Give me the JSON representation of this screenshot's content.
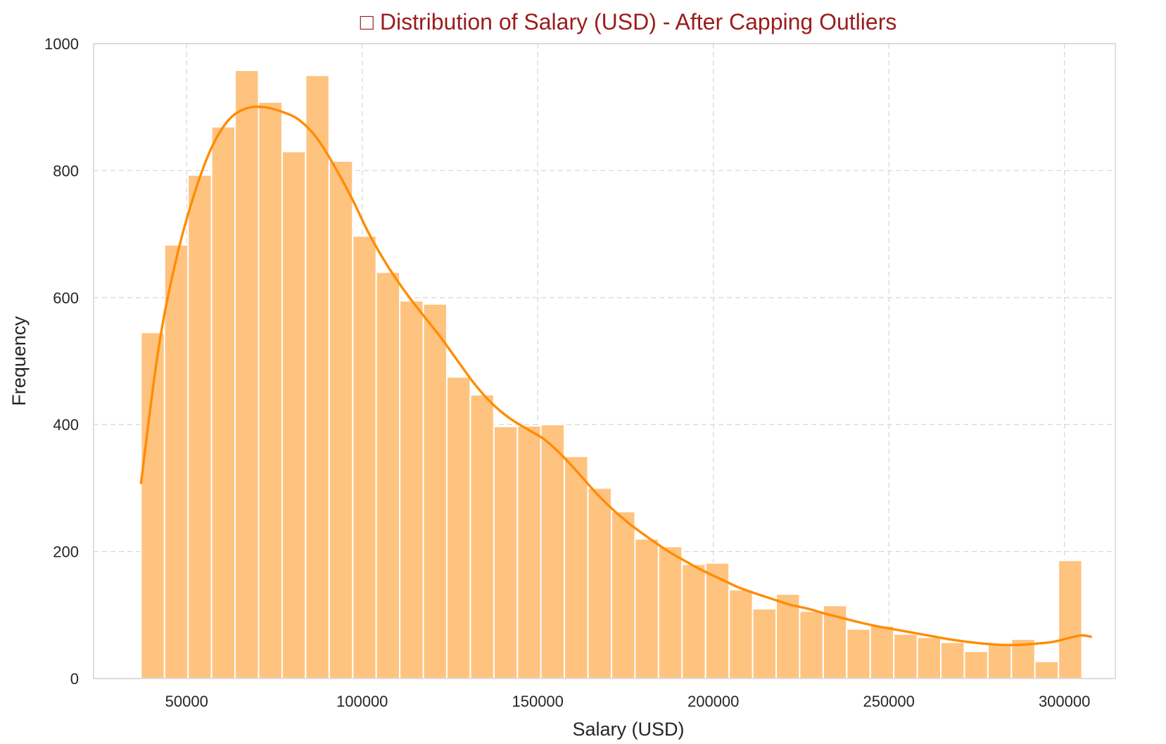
{
  "chart_data": {
    "type": "bar",
    "title": "□ Distribution of Salary (USD) - After Capping Outliers",
    "xlabel": "Salary (USD)",
    "ylabel": "Frequency",
    "xlim": [
      23500,
      314500
    ],
    "ylim": [
      0,
      1000
    ],
    "xticks": [
      50000,
      100000,
      150000,
      200000,
      250000,
      300000
    ],
    "yticks": [
      0,
      200,
      400,
      600,
      800,
      1000
    ],
    "grid": true,
    "legend": "none",
    "bin_start": 37000,
    "bin_width": 6700,
    "values": [
      545,
      683,
      793,
      869,
      958,
      908,
      830,
      950,
      815,
      697,
      640,
      595,
      590,
      475,
      447,
      397,
      398,
      400,
      350,
      300,
      263,
      220,
      208,
      180,
      182,
      140,
      110,
      133,
      106,
      115,
      78,
      83,
      70,
      65,
      57,
      43,
      53,
      62,
      27,
      186
    ],
    "kde": {
      "x": [
        37000,
        42000,
        47000,
        52000,
        57000,
        62000,
        67000,
        72000,
        77000,
        82000,
        87000,
        92000,
        97000,
        102000,
        107000,
        112000,
        117000,
        122000,
        127000,
        132000,
        137000,
        142000,
        147000,
        152000,
        157000,
        162000,
        167000,
        172000,
        177000,
        182000,
        187000,
        192000,
        197000,
        202000,
        207000,
        212000,
        217000,
        222000,
        227000,
        232000,
        237000,
        242000,
        247000,
        252000,
        257000,
        262000,
        267000,
        272000,
        277000,
        282000,
        287000,
        292000,
        297000,
        302000,
        305000,
        307500
      ],
      "y": [
        308,
        520,
        660,
        760,
        835,
        880,
        898,
        900,
        893,
        880,
        852,
        808,
        757,
        700,
        652,
        611,
        575,
        540,
        502,
        464,
        433,
        410,
        393,
        376,
        351,
        321,
        290,
        263,
        240,
        220,
        201,
        185,
        170,
        157,
        144,
        134,
        125,
        116,
        110,
        102,
        95,
        88,
        82,
        77,
        72,
        67,
        62,
        58,
        55,
        53,
        53,
        55,
        58,
        65,
        68,
        66
      ]
    },
    "colors": {
      "bar": "#ffc380",
      "bar_edge": "#ffffff",
      "kde": "#ff8c00",
      "title": "#9b1c1c"
    }
  }
}
